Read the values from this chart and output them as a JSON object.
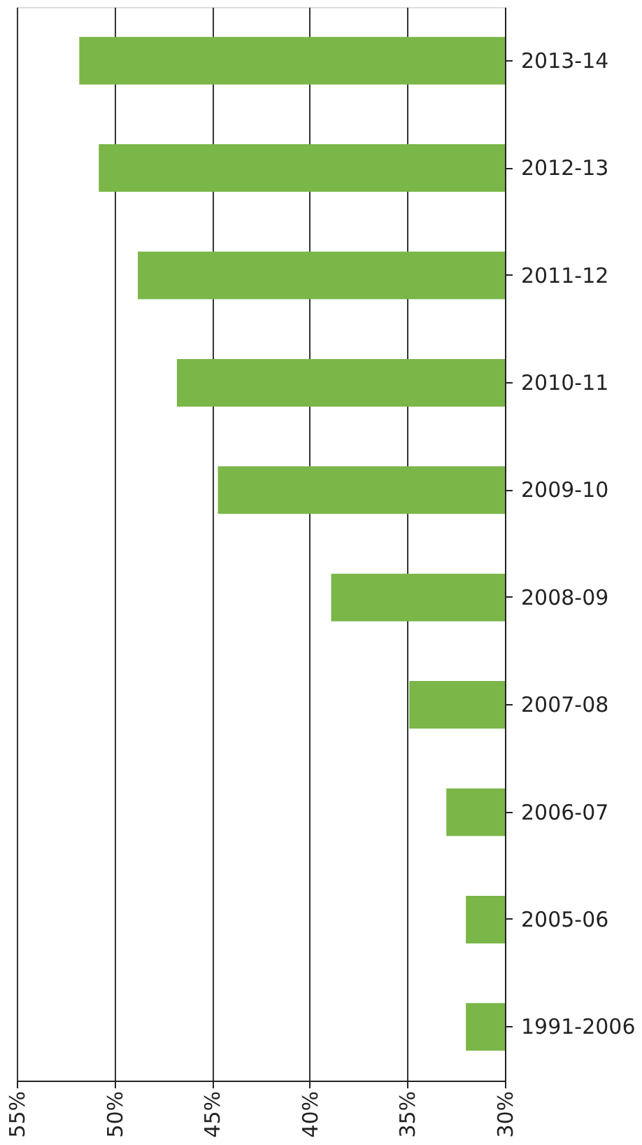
{
  "chart_data": {
    "type": "bar",
    "orientation": "horizontal",
    "categories": [
      "2013-14",
      "2012-13",
      "2011-12",
      "2010-11",
      "2009-10",
      "2008-09",
      "2007-08",
      "2006-07",
      "2005-06",
      "1991-2006"
    ],
    "values": [
      51.8,
      50.8,
      48.8,
      46.8,
      44.7,
      38.9,
      34.9,
      33.0,
      32.0,
      32.0
    ],
    "color": "#7ab648",
    "xlim": [
      55,
      30
    ],
    "xticks": [
      {
        "value": 55,
        "label": "55%"
      },
      {
        "value": 50,
        "label": "50%"
      },
      {
        "value": 45,
        "label": "45%"
      },
      {
        "value": 40,
        "label": "40%"
      },
      {
        "value": 35,
        "label": "35%"
      },
      {
        "value": 30,
        "label": "30%"
      }
    ],
    "grid": "x"
  }
}
